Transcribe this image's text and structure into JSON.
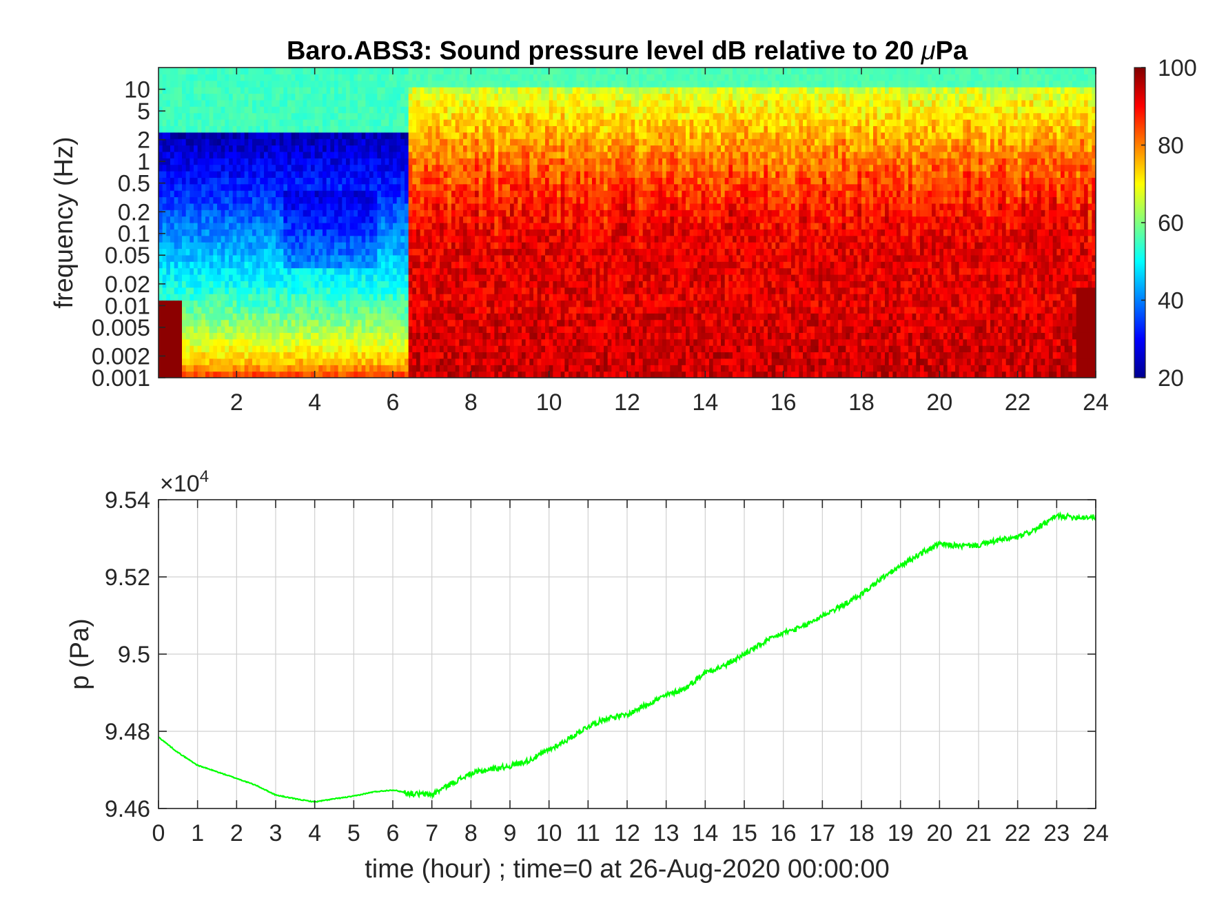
{
  "chart_data": [
    {
      "type": "heatmap",
      "title": "Baro.ABS3: Sound pressure level dB relative to 20 μPa",
      "title_prefix": "Baro.ABS3: Sound pressure level dB relative to 20 ",
      "title_mu": "μ",
      "title_suffix": "Pa",
      "xlabel": "",
      "ylabel": "frequency (Hz)",
      "xlim": [
        0,
        24
      ],
      "ylim": [
        0.001,
        20
      ],
      "yscale": "log",
      "x_ticks": [
        "2",
        "4",
        "6",
        "8",
        "10",
        "12",
        "14",
        "16",
        "18",
        "20",
        "22",
        "24"
      ],
      "y_ticks": [
        "10",
        "5",
        "2",
        "1",
        "0.5",
        "0.2",
        "0.1",
        "0.05",
        "0.02",
        "0.01",
        "0.005",
        "0.002",
        "0.001"
      ],
      "colormap": "jet",
      "colorbar": {
        "range": [
          20,
          100
        ],
        "ticks": [
          "100",
          "80",
          "60",
          "40",
          "20"
        ]
      }
    },
    {
      "type": "line",
      "title": "",
      "xlabel": "time (hour) ; time=0 at 26-Aug-2020 00:00:00",
      "ylabel": "p (Pa)",
      "xlim": [
        0,
        24
      ],
      "ylim": [
        94600,
        95400
      ],
      "exponent_label_base": "×10",
      "exponent_label_power": "4",
      "grid": true,
      "x_ticks": [
        "0",
        "1",
        "2",
        "3",
        "4",
        "5",
        "6",
        "7",
        "8",
        "9",
        "10",
        "11",
        "12",
        "13",
        "14",
        "15",
        "16",
        "17",
        "18",
        "19",
        "20",
        "21",
        "22",
        "23",
        "24"
      ],
      "y_ticks": [
        "9.54",
        "9.52",
        "9.5",
        "9.48",
        "9.46"
      ],
      "series": [
        {
          "color": "#00ff00",
          "x": [
            0,
            0.5,
            1,
            1.5,
            2,
            2.5,
            3,
            3.5,
            4,
            4.5,
            5,
            5.5,
            6,
            6.5,
            7,
            7.5,
            8,
            8.5,
            9,
            9.5,
            10,
            10.5,
            11,
            11.5,
            12,
            12.5,
            13,
            13.5,
            14,
            14.5,
            15,
            15.5,
            16,
            16.5,
            17,
            17.5,
            18,
            18.5,
            19,
            19.5,
            20,
            20.5,
            21,
            21.5,
            22,
            22.5,
            23,
            23.5,
            24
          ],
          "y": [
            94785,
            94745,
            94712,
            94695,
            94678,
            94660,
            94635,
            94625,
            94617,
            94625,
            94632,
            94643,
            94648,
            94638,
            94636,
            94665,
            94690,
            94702,
            94710,
            94725,
            94752,
            94780,
            94813,
            94835,
            94842,
            94870,
            94893,
            94912,
            94953,
            94970,
            95000,
            95030,
            95055,
            95070,
            95100,
            95125,
            95155,
            95195,
            95228,
            95260,
            95285,
            95280,
            95282,
            95295,
            95302,
            95325,
            95358,
            95355,
            95355
          ]
        }
      ]
    }
  ]
}
